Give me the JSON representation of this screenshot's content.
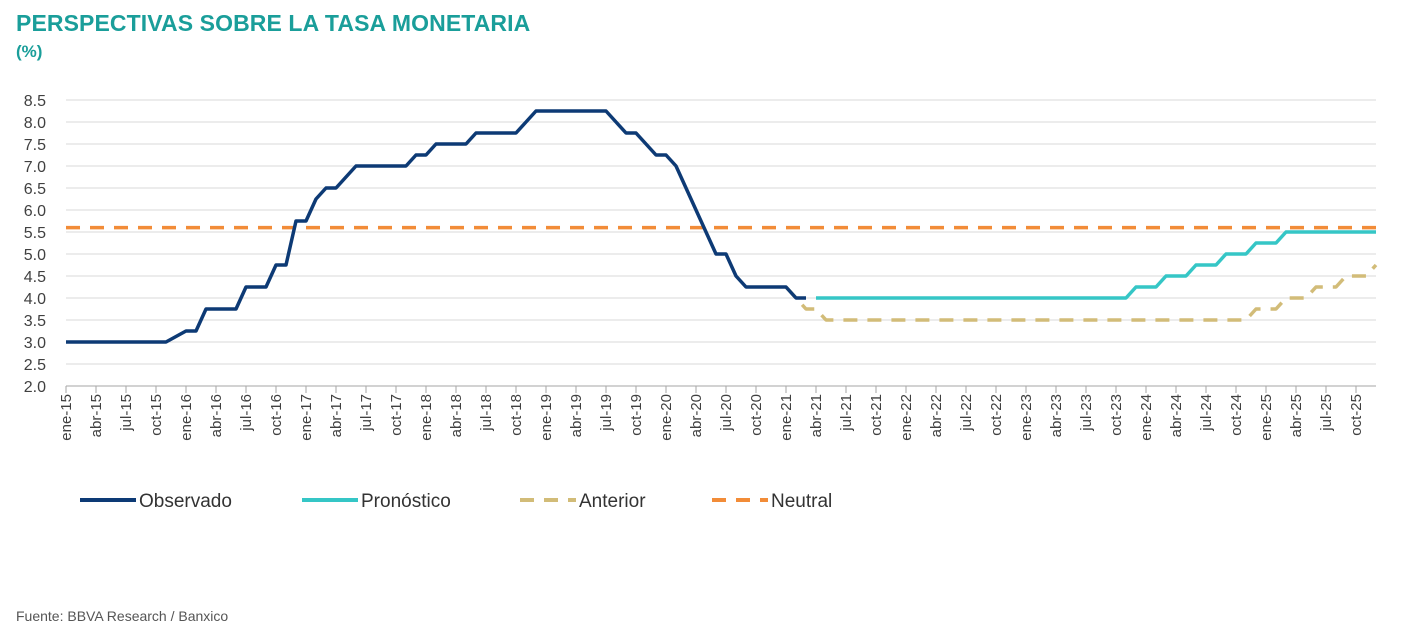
{
  "header": {
    "title": "PERSPECTIVAS SOBRE LA TASA MONETARIA",
    "subtitle": "(%)"
  },
  "source": "Fuente: BBVA Research / Banxico",
  "colors": {
    "title": "#1a9e9a",
    "observado": "#0d3a75",
    "pronostico": "#35c6c6",
    "anterior": "#d2bc78",
    "neutral": "#f28c38",
    "grid": "#d9d9d9",
    "axis_text": "#404040"
  },
  "chart_data": {
    "type": "line",
    "title": "PERSPECTIVAS SOBRE LA TASA MONETARIA",
    "ylabel": "(%)",
    "xlabel": "",
    "ylim": [
      2.0,
      8.5
    ],
    "ytick_step": 0.5,
    "grid": true,
    "legend_position": "bottom",
    "xrange": [
      "2015-01",
      "2025-12"
    ],
    "xtick_labels": [
      "ene-15",
      "abr-15",
      "jul-15",
      "oct-15",
      "ene-16",
      "abr-16",
      "jul-16",
      "oct-16",
      "ene-17",
      "abr-17",
      "jul-17",
      "oct-17",
      "ene-18",
      "abr-18",
      "jul-18",
      "oct-18",
      "ene-19",
      "abr-19",
      "jul-19",
      "oct-19",
      "ene-20",
      "abr-20",
      "jul-20",
      "oct-20",
      "ene-21",
      "abr-21",
      "jul-21",
      "oct-21",
      "ene-22",
      "abr-22",
      "jul-22",
      "oct-22",
      "ene-23",
      "abr-23",
      "jul-23",
      "oct-23",
      "ene-24",
      "abr-24",
      "jul-24",
      "oct-24",
      "ene-25",
      "abr-25",
      "jul-25",
      "oct-25"
    ],
    "series": [
      {
        "name": "Observado",
        "style": "solid",
        "points": [
          [
            "2015-01",
            3.0
          ],
          [
            "2015-11",
            3.0
          ],
          [
            "2016-01",
            3.25
          ],
          [
            "2016-02",
            3.25
          ],
          [
            "2016-03",
            3.75
          ],
          [
            "2016-06",
            3.75
          ],
          [
            "2016-07",
            4.25
          ],
          [
            "2016-09",
            4.25
          ],
          [
            "2016-10",
            4.75
          ],
          [
            "2016-11",
            4.75
          ],
          [
            "2016-12",
            5.75
          ],
          [
            "2017-01",
            5.75
          ],
          [
            "2017-02",
            6.25
          ],
          [
            "2017-03",
            6.5
          ],
          [
            "2017-04",
            6.5
          ],
          [
            "2017-05",
            6.75
          ],
          [
            "2017-06",
            7.0
          ],
          [
            "2017-11",
            7.0
          ],
          [
            "2017-12",
            7.25
          ],
          [
            "2018-01",
            7.25
          ],
          [
            "2018-02",
            7.5
          ],
          [
            "2018-05",
            7.5
          ],
          [
            "2018-06",
            7.75
          ],
          [
            "2018-10",
            7.75
          ],
          [
            "2018-11",
            8.0
          ],
          [
            "2018-12",
            8.25
          ],
          [
            "2019-07",
            8.25
          ],
          [
            "2019-08",
            8.0
          ],
          [
            "2019-09",
            7.75
          ],
          [
            "2019-10",
            7.75
          ],
          [
            "2019-11",
            7.5
          ],
          [
            "2019-12",
            7.25
          ],
          [
            "2020-01",
            7.25
          ],
          [
            "2020-02",
            7.0
          ],
          [
            "2020-03",
            6.5
          ],
          [
            "2020-04",
            6.0
          ],
          [
            "2020-05",
            5.5
          ],
          [
            "2020-06",
            5.0
          ],
          [
            "2020-07",
            5.0
          ],
          [
            "2020-08",
            4.5
          ],
          [
            "2020-09",
            4.25
          ],
          [
            "2021-01",
            4.25
          ],
          [
            "2021-02",
            4.0
          ],
          [
            "2021-03",
            4.0
          ]
        ]
      },
      {
        "name": "Pronóstico",
        "style": "solid",
        "points": [
          [
            "2021-04",
            4.0
          ],
          [
            "2023-11",
            4.0
          ],
          [
            "2023-12",
            4.25
          ],
          [
            "2024-02",
            4.25
          ],
          [
            "2024-03",
            4.5
          ],
          [
            "2024-05",
            4.5
          ],
          [
            "2024-06",
            4.75
          ],
          [
            "2024-08",
            4.75
          ],
          [
            "2024-09",
            5.0
          ],
          [
            "2024-11",
            5.0
          ],
          [
            "2024-12",
            5.25
          ],
          [
            "2025-02",
            5.25
          ],
          [
            "2025-03",
            5.5
          ],
          [
            "2025-12",
            5.5
          ]
        ]
      },
      {
        "name": "Anterior",
        "style": "dashed",
        "points": [
          [
            "2021-01",
            4.25
          ],
          [
            "2021-02",
            4.0
          ],
          [
            "2021-03",
            3.75
          ],
          [
            "2021-04",
            3.75
          ],
          [
            "2021-05",
            3.5
          ],
          [
            "2024-11",
            3.5
          ],
          [
            "2024-12",
            3.75
          ],
          [
            "2025-02",
            3.75
          ],
          [
            "2025-03",
            4.0
          ],
          [
            "2025-05",
            4.0
          ],
          [
            "2025-06",
            4.25
          ],
          [
            "2025-08",
            4.25
          ],
          [
            "2025-09",
            4.5
          ],
          [
            "2025-11",
            4.5
          ],
          [
            "2025-12",
            4.75
          ]
        ]
      },
      {
        "name": "Neutral",
        "style": "dashed",
        "points": [
          [
            "2015-01",
            5.6
          ],
          [
            "2025-12",
            5.6
          ]
        ]
      }
    ]
  }
}
